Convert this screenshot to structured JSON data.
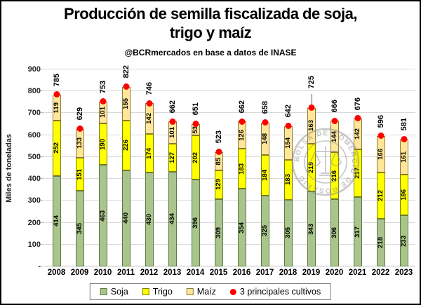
{
  "header": {
    "title_line1": "Producción de semilla fiscalizada de soja,",
    "title_line2": "trigo y maíz",
    "subtitle": "@BCRmercados en base a datos de INASE"
  },
  "watermark": {
    "text": "BOLSA DE COMERCIO DE ROSARIO",
    "color": "#8f8f8f"
  },
  "chart_data": {
    "type": "bar",
    "stacked": true,
    "title": "Producción de semilla fiscalizada de soja, trigo y maíz",
    "subtitle": "@BCRmercados en base a datos de INASE",
    "categories": [
      "2008",
      "2009",
      "2010",
      "2011",
      "2012",
      "2013",
      "2014",
      "2015",
      "2016",
      "2017",
      "2018",
      "2019",
      "2020",
      "2021",
      "2022",
      "2023"
    ],
    "series": [
      {
        "name": "Soja",
        "color": "#a9c48c",
        "border": "#5c7a40",
        "values": [
          414,
          345,
          463,
          440,
          430,
          434,
          396,
          309,
          354,
          325,
          305,
          343,
          306,
          317,
          218,
          233
        ]
      },
      {
        "name": "Trigo",
        "color": "#ffff00",
        "border": "#7f7f00",
        "values": [
          252,
          151,
          190,
          226,
          174,
          127,
          202,
          129,
          183,
          184,
          183,
          219,
          216,
          217,
          212,
          186
        ]
      },
      {
        "name": "Maíz",
        "color": "#ffe699",
        "border": "#8e7b3a",
        "values": [
          119,
          133,
          101,
          155,
          142,
          101,
          53,
          85,
          126,
          148,
          154,
          163,
          144,
          142,
          166,
          161
        ]
      }
    ],
    "totals": {
      "name": "3 principales cultivos",
      "color": "#ff0000",
      "values": [
        785,
        629,
        753,
        822,
        746,
        662,
        651,
        523,
        662,
        658,
        642,
        725,
        666,
        676,
        596,
        581
      ],
      "leader_years": [
        "2019"
      ]
    },
    "xlabel": "",
    "ylabel": "Miles de toneladas",
    "ylim": [
      0,
      900
    ],
    "ytick_step": 100,
    "ytick_labels": [
      "-",
      "100",
      "200",
      "300",
      "400",
      "500",
      "600",
      "700",
      "800",
      "900"
    ],
    "grid": true,
    "legend_position": "bottom"
  }
}
